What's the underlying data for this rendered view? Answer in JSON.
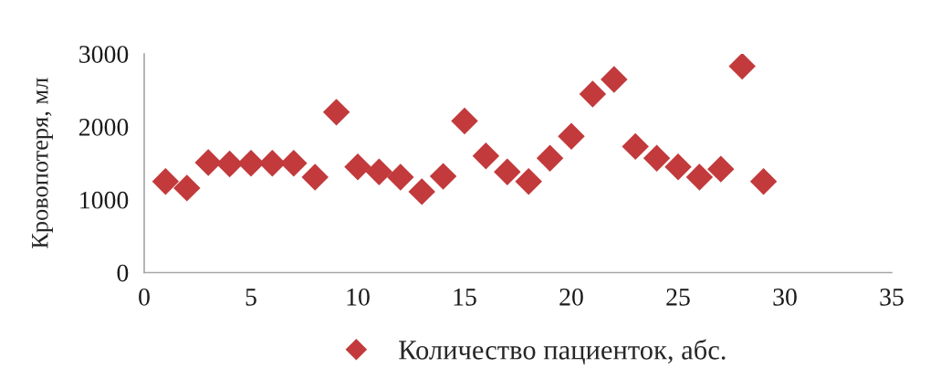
{
  "chart_data": {
    "type": "scatter",
    "ylabel": "Кровопотеря, мл",
    "x": [
      1,
      2,
      3,
      4,
      5,
      6,
      7,
      8,
      9,
      10,
      11,
      12,
      13,
      14,
      15,
      16,
      17,
      18,
      19,
      20,
      21,
      22,
      23,
      24,
      25,
      26,
      27,
      28,
      29
    ],
    "series": [
      {
        "name": "Количество пациенток, абс.",
        "color": "#c23a3c",
        "values": [
          1250,
          1160,
          1510,
          1490,
          1500,
          1500,
          1500,
          1310,
          2200,
          1450,
          1380,
          1310,
          1110,
          1320,
          2080,
          1600,
          1380,
          1250,
          1570,
          1870,
          2450,
          2650,
          1730,
          1570,
          1450,
          1310,
          1420,
          2830,
          1250
        ]
      }
    ],
    "xlim": [
      0,
      35
    ],
    "xticks": [
      0,
      5,
      10,
      15,
      20,
      25,
      30,
      35
    ],
    "ylim": [
      0,
      3000
    ],
    "yticks": [
      0,
      1000,
      2000,
      3000
    ],
    "legend": "bottom",
    "marker": "diamond"
  }
}
